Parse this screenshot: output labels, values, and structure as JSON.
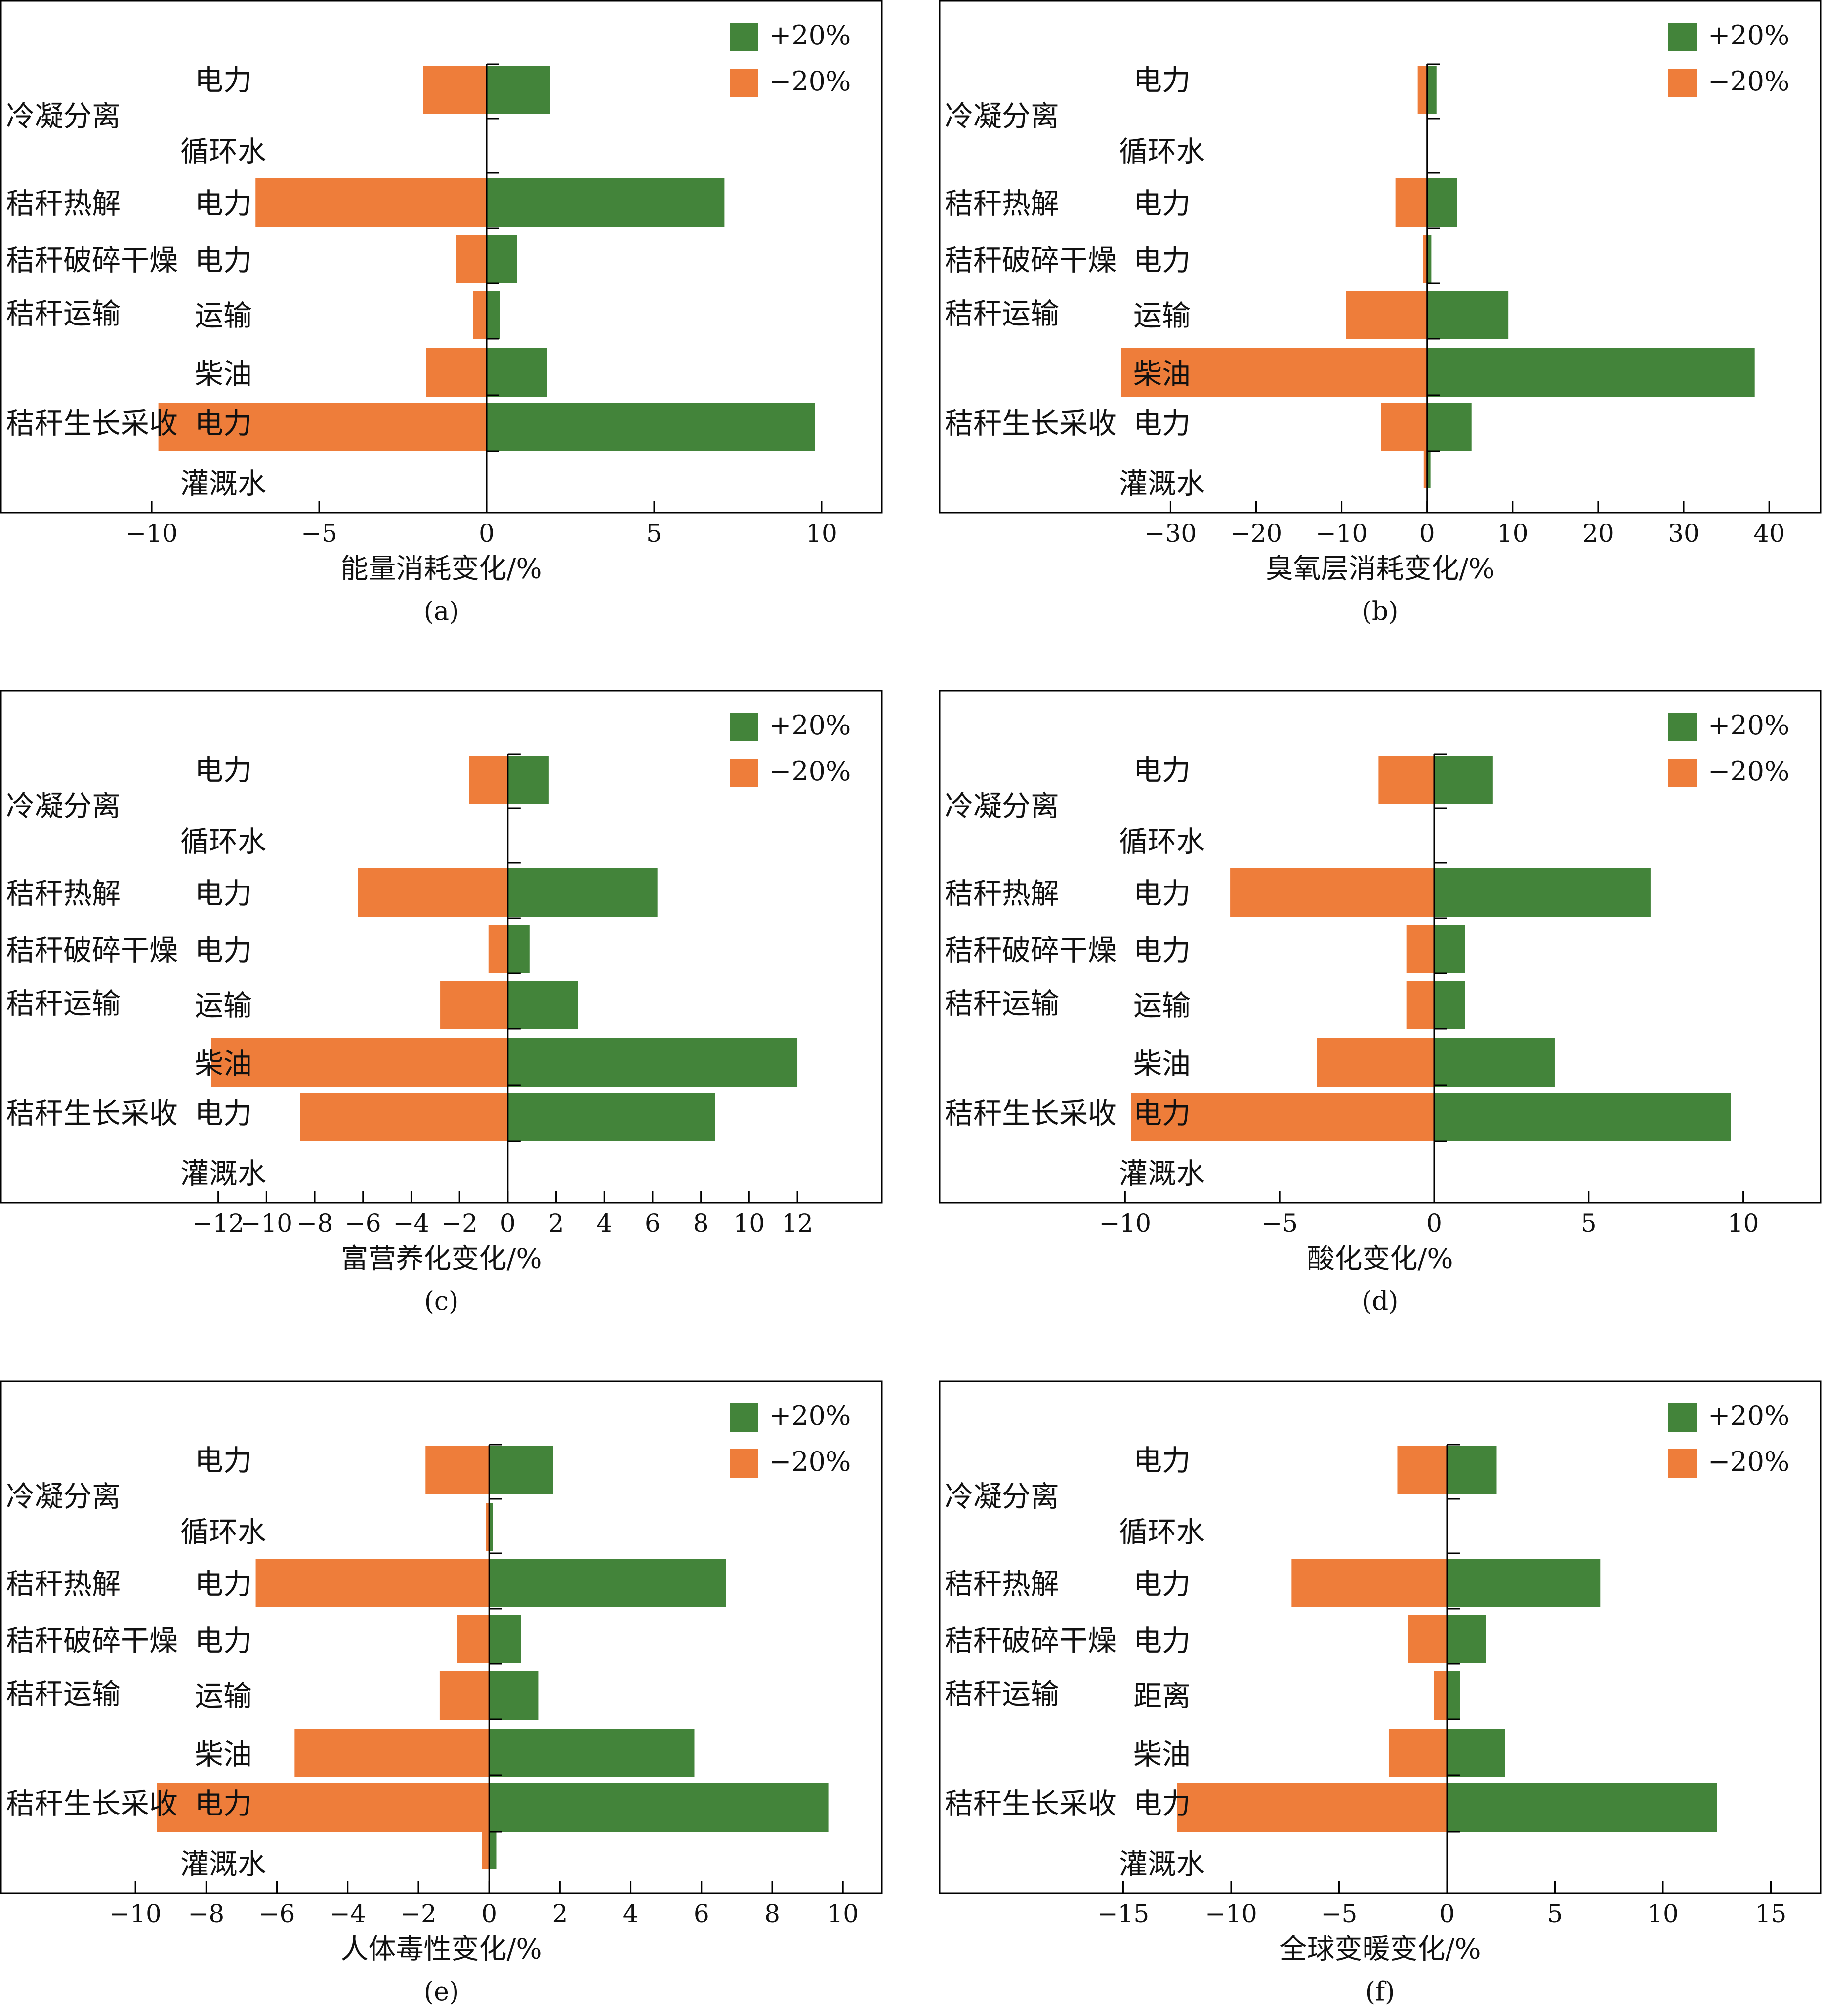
{
  "colors": {
    "plus": "#43843a",
    "minus": "#ee7d3a",
    "axis": "#000000"
  },
  "legend": {
    "plus": "+20%",
    "minus": "−20%"
  },
  "row_labels": {
    "cat": [
      "冷凝分离",
      "秸秆热解",
      "秸秆破碎干燥",
      "秸秆运输",
      "秸秆生长采收"
    ],
    "sub": [
      "电力",
      "循环水",
      "电力",
      "电力",
      "运输",
      "柴油",
      "电力",
      "灌溉水"
    ],
    "sub_f": [
      "电力",
      "循环水",
      "电力",
      "电力",
      "距离",
      "柴油",
      "电力",
      "灌溉水"
    ]
  },
  "chart_data": [
    {
      "type": "bar",
      "panel": "(a)",
      "xlabel": "能量消耗变化/%",
      "xlim": [
        -14.5,
        11.8
      ],
      "ticks": [
        -10,
        -5,
        0,
        5,
        10
      ],
      "categories": [
        "冷凝分离 电力",
        "冷凝分离 循环水",
        "秸秆热解 电力",
        "秸秆破碎干燥 电力",
        "秸秆运输 运输",
        "秸秆生长采收 柴油",
        "秸秆生长采收 电力",
        "秸秆生长采收 灌溉水"
      ],
      "series": [
        {
          "name": "+20%",
          "values": [
            1.9,
            0,
            7.1,
            0.9,
            0.4,
            1.8,
            9.8,
            0
          ]
        },
        {
          "name": "−20%",
          "values": [
            -1.9,
            0,
            -6.9,
            -0.9,
            -0.4,
            -1.8,
            -9.8,
            0
          ]
        }
      ]
    },
    {
      "type": "bar",
      "panel": "(b)",
      "xlabel": "臭氧层消耗变化/%",
      "xlim": [
        -57,
        46
      ],
      "ticks": [
        -30,
        -20,
        -10,
        0,
        10,
        20,
        30,
        40
      ],
      "categories": [
        "冷凝分离 电力",
        "冷凝分离 循环水",
        "秸秆热解 电力",
        "秸秆破碎干燥 电力",
        "秸秆运输 运输",
        "秸秆生长采收 柴油",
        "秸秆生长采收 电力",
        "秸秆生长采收 灌溉水"
      ],
      "series": [
        {
          "name": "+20%",
          "values": [
            1.1,
            0,
            3.5,
            0.5,
            9.5,
            38.3,
            5.2,
            0.4
          ]
        },
        {
          "name": "−20%",
          "values": [
            -1.1,
            0,
            -3.7,
            -0.5,
            -9.5,
            -35.8,
            -5.4,
            -0.4
          ]
        }
      ]
    },
    {
      "type": "bar",
      "panel": "(c)",
      "xlabel": "富营养化变化/%",
      "xlim": [
        -21,
        15.5
      ],
      "ticks": [
        -12,
        -10,
        -8,
        -6,
        -4,
        -2,
        0,
        2,
        4,
        6,
        8,
        10,
        12
      ],
      "categories": [
        "冷凝分离 电力",
        "冷凝分离 循环水",
        "秸秆热解 电力",
        "秸秆破碎干燥 电力",
        "秸秆运输 运输",
        "秸秆生长采收 柴油",
        "秸秆生长采收 电力",
        "秸秆生长采收 灌溉水"
      ],
      "series": [
        {
          "name": "+20%",
          "values": [
            1.7,
            0,
            6.2,
            0.9,
            2.9,
            12.0,
            8.6,
            0
          ]
        },
        {
          "name": "−20%",
          "values": [
            -1.6,
            0,
            -6.2,
            -0.8,
            -2.8,
            -12.3,
            -8.6,
            0
          ]
        }
      ]
    },
    {
      "type": "bar",
      "panel": "(d)",
      "xlabel": "酸化变化/%",
      "xlim": [
        -16,
        12.5
      ],
      "ticks": [
        -10,
        -5,
        0,
        5,
        10
      ],
      "categories": [
        "冷凝分离 电力",
        "冷凝分离 循环水",
        "秸秆热解 电力",
        "秸秆破碎干燥 电力",
        "秸秆运输 运输",
        "秸秆生长采收 柴油",
        "秸秆生长采收 电力",
        "秸秆生长采收 灌溉水"
      ],
      "series": [
        {
          "name": "+20%",
          "values": [
            1.9,
            0,
            7.0,
            1.0,
            1.0,
            3.9,
            9.6,
            0
          ]
        },
        {
          "name": "−20%",
          "values": [
            -1.8,
            0,
            -6.6,
            -0.9,
            -0.9,
            -3.8,
            -9.8,
            0
          ]
        }
      ]
    },
    {
      "type": "bar",
      "panel": "(e)",
      "xlabel": "人体毒性变化/%",
      "xlim": [
        -13.8,
        11.1
      ],
      "ticks": [
        -10,
        -8,
        -6,
        -4,
        -2,
        0,
        2,
        4,
        6,
        8,
        10
      ],
      "categories": [
        "冷凝分离 电力",
        "冷凝分离 循环水",
        "秸秆热解 电力",
        "秸秆破碎干燥 电力",
        "秸秆运输 运输",
        "秸秆生长采收 柴油",
        "秸秆生长采收 电力",
        "秸秆生长采收 灌溉水"
      ],
      "series": [
        {
          "name": "+20%",
          "values": [
            1.8,
            0.1,
            6.7,
            0.9,
            1.4,
            5.8,
            9.6,
            0.2
          ]
        },
        {
          "name": "−20%",
          "values": [
            -1.8,
            -0.1,
            -6.6,
            -0.9,
            -1.4,
            -5.5,
            -9.4,
            -0.2
          ]
        }
      ]
    },
    {
      "type": "bar",
      "panel": "(f)",
      "xlabel": "全球变暖变化/%",
      "xlim": [
        -23.5,
        17.3
      ],
      "ticks": [
        -15,
        -10,
        -5,
        0,
        5,
        10,
        15
      ],
      "categories": [
        "冷凝分离 电力",
        "冷凝分离 循环水",
        "秸秆热解 电力",
        "秸秆破碎干燥 电力",
        "秸秆运输 距离",
        "秸秆生长采收 柴油",
        "秸秆生长采收 电力",
        "秸秆生长采收 灌溉水"
      ],
      "series": [
        {
          "name": "+20%",
          "values": [
            2.3,
            0,
            7.1,
            1.8,
            0.6,
            2.7,
            12.5,
            0
          ]
        },
        {
          "name": "−20%",
          "values": [
            -2.3,
            0,
            -7.2,
            -1.8,
            -0.6,
            -2.7,
            -12.5,
            0
          ]
        }
      ]
    }
  ]
}
